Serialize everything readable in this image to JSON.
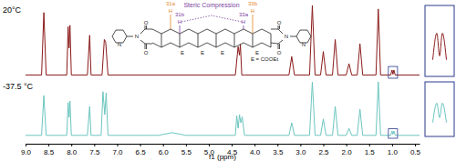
{
  "chart_data": {
    "type": "line",
    "x_label": "f1 (ppm)",
    "xlim": [
      9.0,
      0.4
    ],
    "xticks": [
      {
        "value": 9.0,
        "label": "9.0"
      },
      {
        "value": 8.5,
        "label": "8.5"
      },
      {
        "value": 8.0,
        "label": "8.0"
      },
      {
        "value": 7.5,
        "label": "7.5"
      },
      {
        "value": 7.0,
        "label": "7.0"
      },
      {
        "value": 6.5,
        "label": "6.5"
      },
      {
        "value": 6.0,
        "label": "6.0"
      },
      {
        "value": 5.5,
        "label": "5.5"
      },
      {
        "value": 5.0,
        "label": "5.0"
      },
      {
        "value": 4.5,
        "label": "4.5"
      },
      {
        "value": 4.0,
        "label": "4.0"
      },
      {
        "value": 3.5,
        "label": "3.5"
      },
      {
        "value": 3.0,
        "label": "3.0"
      },
      {
        "value": 2.5,
        "label": "2.5"
      },
      {
        "value": 2.0,
        "label": "2.0"
      },
      {
        "value": 1.5,
        "label": "1.5"
      },
      {
        "value": 1.0,
        "label": "1.0"
      },
      {
        "value": 0.5,
        "label": "0.5"
      }
    ],
    "ylim": [
      0,
      100
    ],
    "tick_labels": "x",
    "series": [
      {
        "name": "20°C",
        "color": "#8b1a1a",
        "x": [
          9.0,
          8.65,
          8.6,
          8.55,
          8.1,
          8.07,
          8.05,
          8.03,
          8.0,
          7.65,
          7.6,
          7.57,
          7.33,
          7.28,
          7.25,
          7.2,
          4.42,
          4.36,
          4.33,
          4.31,
          4.28,
          4.22,
          3.25,
          3.19,
          3.13,
          2.8,
          2.74,
          2.68,
          2.56,
          2.5,
          2.44,
          2.3,
          2.24,
          2.18,
          2.0,
          1.94,
          1.88,
          1.76,
          1.7,
          1.64,
          1.35,
          1.3,
          1.25,
          1.03,
          1.0,
          0.98,
          0.96,
          0.93,
          0.4
        ],
        "values": [
          2,
          2,
          90,
          2,
          2,
          70,
          40,
          72,
          2,
          2,
          58,
          2,
          2,
          52,
          48,
          2,
          2,
          42,
          30,
          45,
          2,
          2,
          2,
          28,
          2,
          2,
          100,
          2,
          2,
          35,
          2,
          2,
          52,
          2,
          2,
          18,
          2,
          2,
          46,
          2,
          2,
          95,
          2,
          2,
          9,
          3,
          9,
          2,
          2
        ]
      },
      {
        "name": "-37.5 °C",
        "color": "#6cc5bf",
        "x": [
          9.0,
          8.65,
          8.6,
          8.55,
          8.1,
          8.07,
          8.05,
          8.03,
          8.0,
          7.65,
          7.6,
          7.57,
          7.35,
          7.31,
          7.27,
          7.24,
          7.2,
          6.1,
          5.8,
          5.5,
          4.42,
          4.39,
          4.36,
          4.33,
          4.3,
          4.27,
          4.22,
          3.25,
          3.19,
          3.13,
          2.8,
          2.74,
          2.68,
          2.56,
          2.5,
          2.44,
          2.3,
          2.24,
          2.18,
          2.0,
          1.94,
          1.88,
          1.76,
          1.7,
          1.64,
          1.35,
          1.3,
          1.25,
          1.03,
          1.0,
          0.98,
          0.96,
          0.93,
          0.4
        ],
        "values": [
          2,
          2,
          75,
          2,
          2,
          62,
          35,
          65,
          2,
          2,
          55,
          2,
          2,
          82,
          40,
          80,
          2,
          2,
          7,
          2,
          2,
          38,
          15,
          40,
          25,
          36,
          2,
          2,
          25,
          2,
          2,
          100,
          2,
          2,
          32,
          2,
          2,
          55,
          2,
          2,
          15,
          2,
          2,
          50,
          2,
          2,
          100,
          2,
          2,
          10,
          4,
          10,
          2,
          2
        ]
      }
    ],
    "inset": {
      "xlim": [
        1.08,
        0.88
      ],
      "ylim": [
        0,
        12
      ]
    },
    "annotations": [
      "Steric Compression",
      "31a",
      "31b",
      "33a",
      "33b",
      "H",
      "H",
      "H",
      "H",
      "E",
      "E",
      "E",
      "E",
      "E = COOEt",
      "O",
      "O",
      "O",
      "O",
      "N",
      "N",
      "N",
      "N"
    ]
  }
}
